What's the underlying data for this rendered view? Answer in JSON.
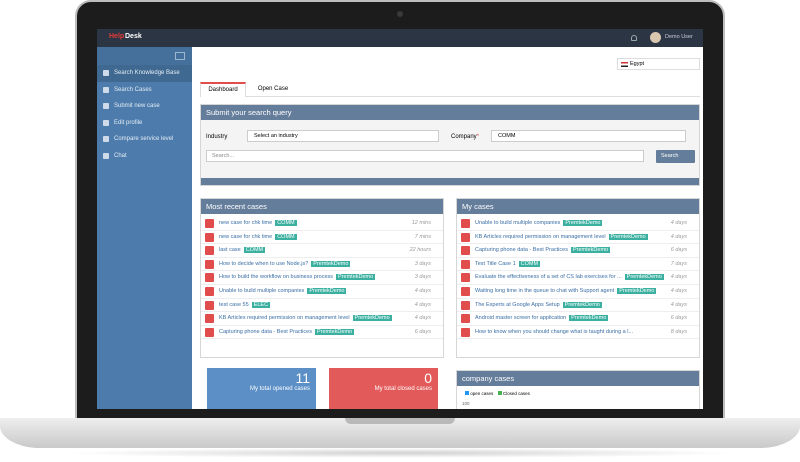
{
  "header": {
    "brand_prefix": "Help",
    "brand": "Desk",
    "user": "Demo User"
  },
  "sidebar": {
    "items": [
      "Search Knowledge Base",
      "Search Cases",
      "Submit new case",
      "Edit profile",
      "Compare service level",
      "Chat"
    ]
  },
  "country": "Egypt",
  "tabs": [
    "Dashboard",
    "Open Case"
  ],
  "search": {
    "title": "Submit your search query",
    "industry_label": "Industry",
    "industry_placeholder": "Select an industry",
    "company_label": "Company",
    "required": "*",
    "company_value": "COMM",
    "query_placeholder": "Search...",
    "button": "Search"
  },
  "recent": {
    "title": "Most recent cases",
    "rows": [
      {
        "title": "new case for chk time",
        "tag": "COMM",
        "time": "12 mins"
      },
      {
        "title": "new case for chk time",
        "tag": "COMM",
        "time": "7 mins"
      },
      {
        "title": "last case",
        "tag": "COMM",
        "time": "22 hours"
      },
      {
        "title": "How to decide when to use Node.js?",
        "tag": "PremtekDemo",
        "time": "3 days"
      },
      {
        "title": "How to build the workflow on business process",
        "tag": "PremtekDemo",
        "time": "3 days"
      },
      {
        "title": "Unable to build multiple companies",
        "tag": "PremtekDemo",
        "time": "4 days"
      },
      {
        "title": "test case 55",
        "tag": "ELEC",
        "time": "4 days"
      },
      {
        "title": "KB Articles required permission on management level",
        "tag": "PremtekDemo",
        "time": "4 days"
      },
      {
        "title": "Capturing phone data - Best Practices",
        "tag": "PremtekDemo",
        "time": "6 days"
      }
    ]
  },
  "my_cases": {
    "title": "My cases",
    "rows": [
      {
        "title": "Unable to build multiple companies",
        "tag": "PremtekDemo",
        "time": "4 days"
      },
      {
        "title": "KB Articles required permission on management level",
        "tag": "PremtekDemo",
        "time": "4 days"
      },
      {
        "title": "Capturing phone data - Best Practices",
        "tag": "PremtekDemo",
        "time": "6 days"
      },
      {
        "title": "Test Title Case 1",
        "tag": "COMM",
        "time": "7 days"
      },
      {
        "title": "Evaluate the effectiveness of a set of CS lab exercises for ...",
        "tag": "PremtekDemo",
        "time": "4 days"
      },
      {
        "title": "Waiting long time in the queue to chat with Support agent",
        "tag": "PremtekDemo",
        "time": "4 days"
      },
      {
        "title": "The Experts at Google Apps Setup",
        "tag": "PremtekDemo",
        "time": "4 days"
      },
      {
        "title": "Android master screen for application",
        "tag": "PremtekDemo",
        "time": "6 days"
      },
      {
        "title": "How to know when you should change what is taught during a l...",
        "time": "8 days"
      }
    ]
  },
  "stats": [
    {
      "value": "11",
      "label": "My total opened cases"
    },
    {
      "value": "0",
      "label": "My total closed cases"
    }
  ],
  "company_cases": {
    "title": "company cases",
    "legend": [
      "open cases",
      "Closed cases"
    ],
    "axis_label": "100"
  }
}
